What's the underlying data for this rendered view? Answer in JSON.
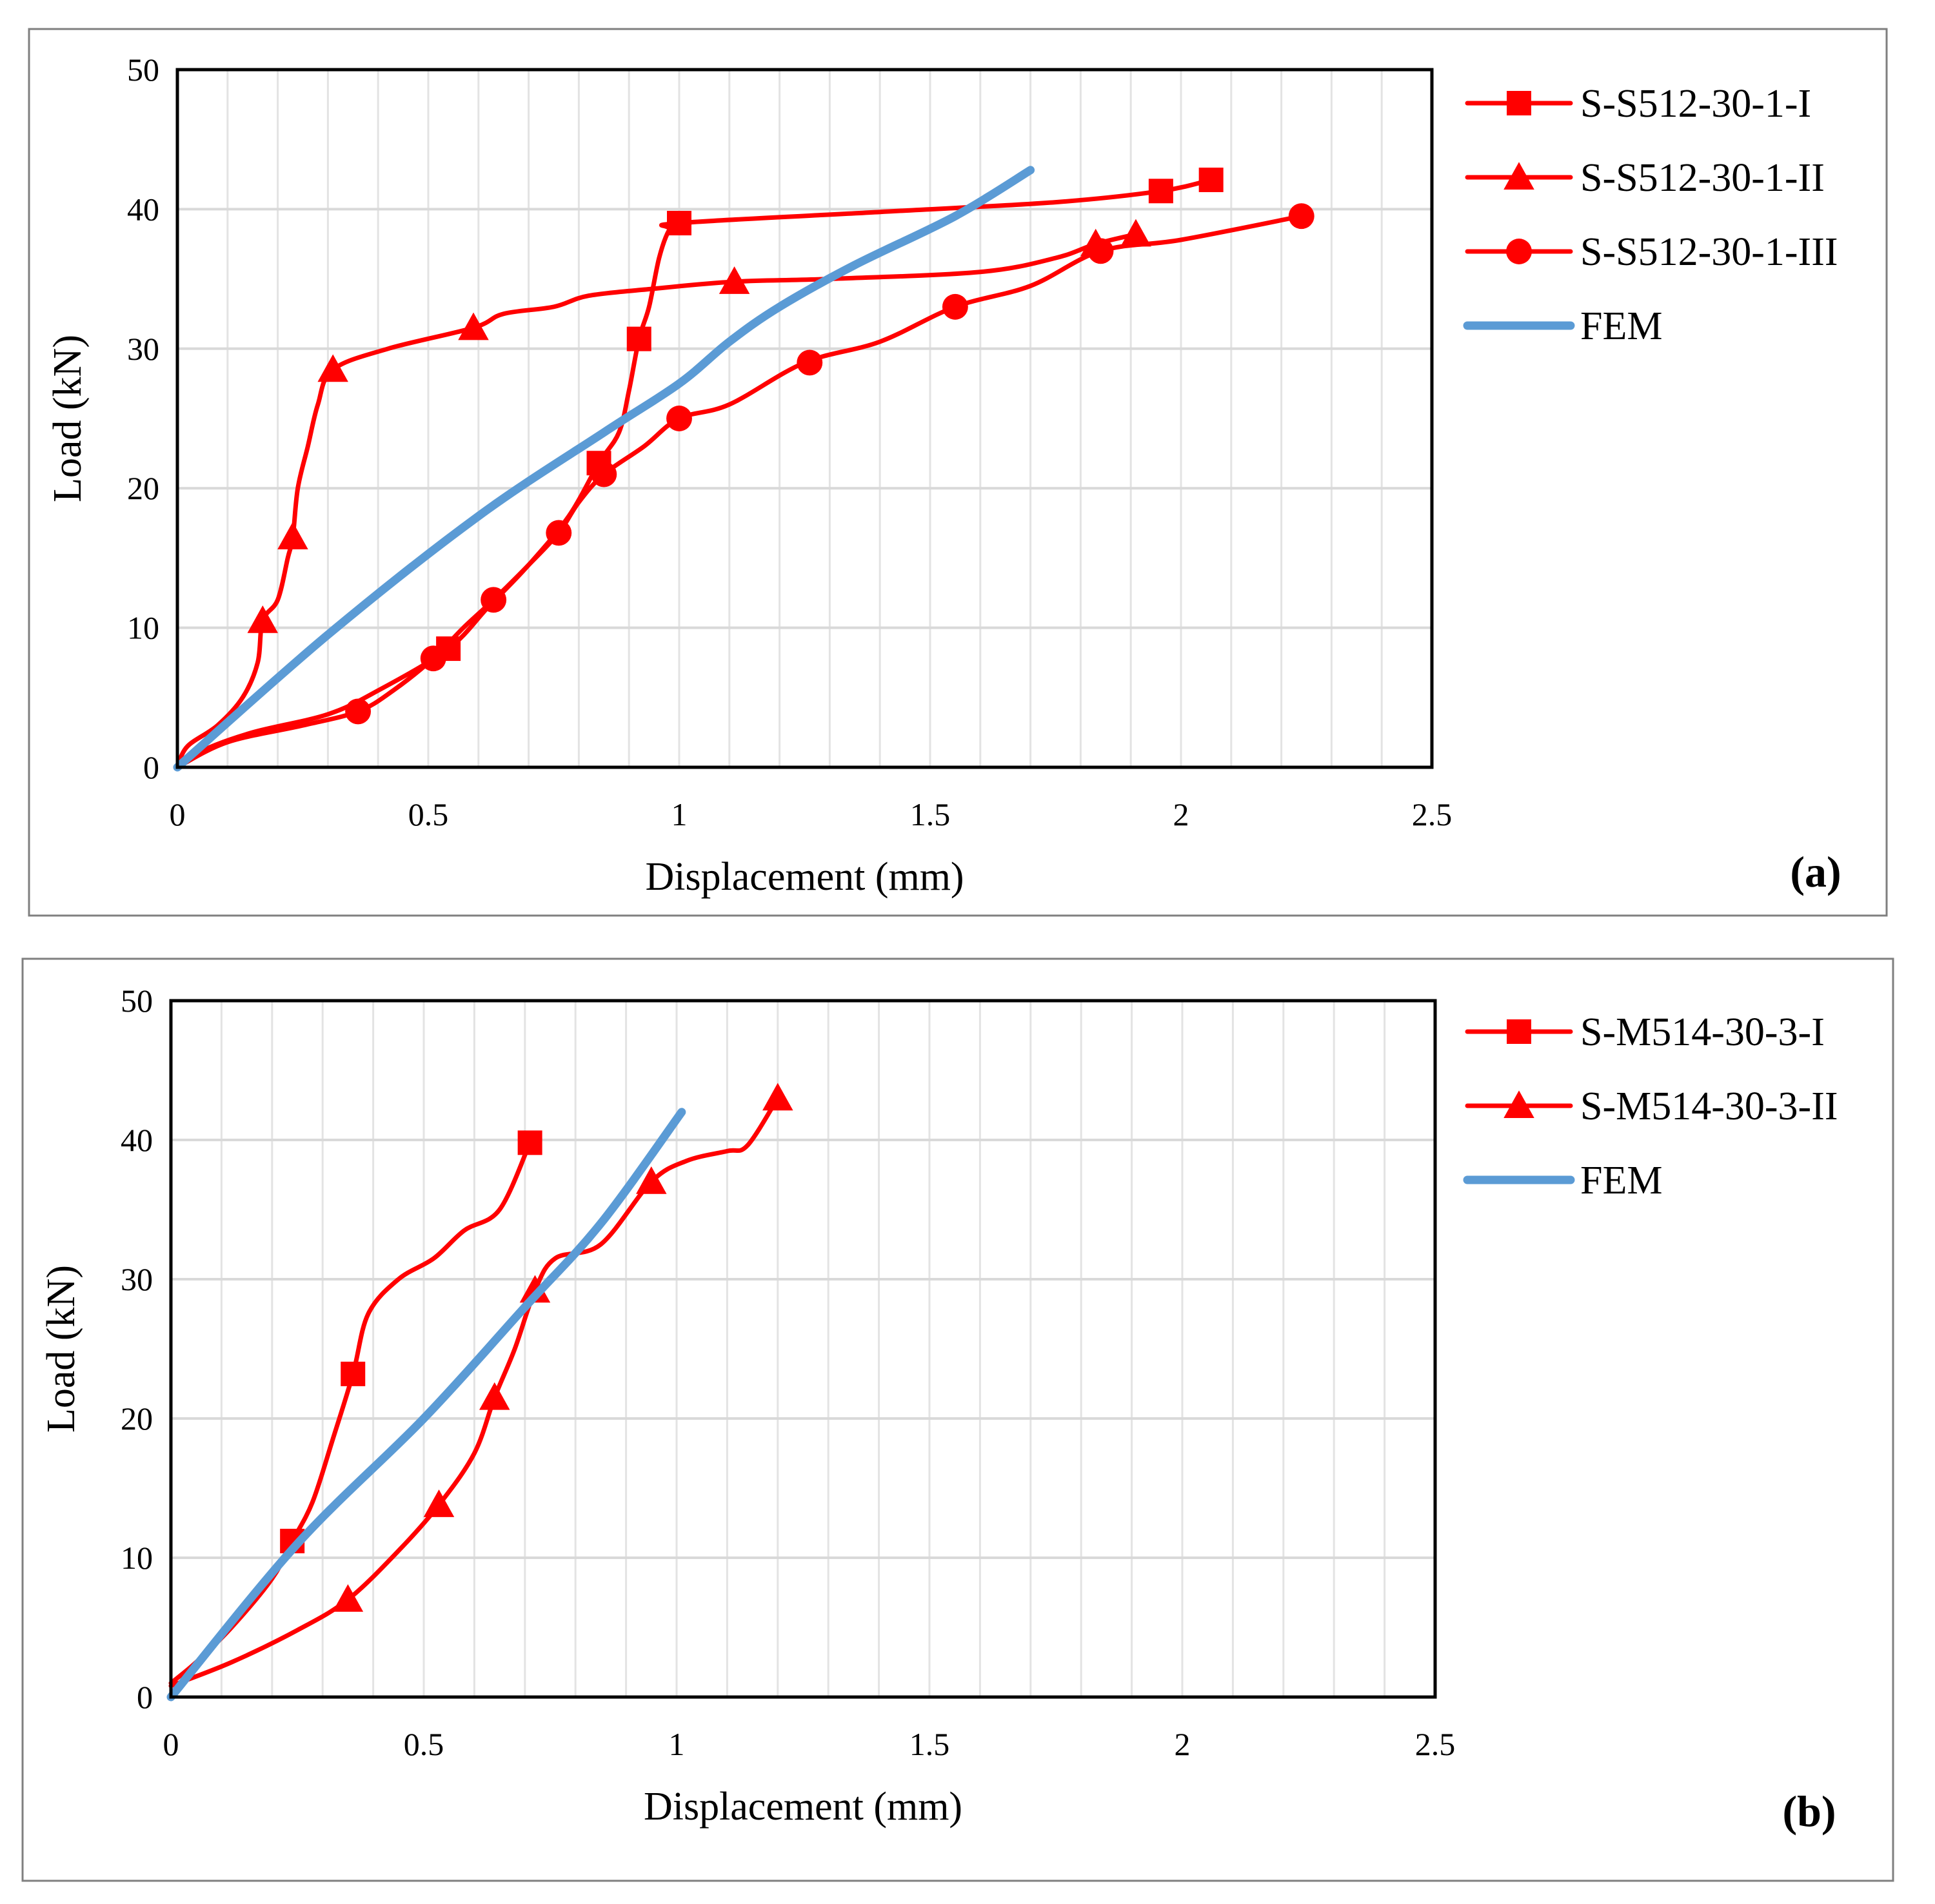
{
  "chart_data": [
    {
      "type": "line",
      "panel_label": "(a)",
      "xlabel": "Displacement (mm)",
      "ylabel": "Load (kN)",
      "xlim": [
        0,
        2.5
      ],
      "ylim": [
        0,
        50
      ],
      "xticks": [
        0,
        0.5,
        1,
        1.5,
        2,
        2.5
      ],
      "xtick_labels": [
        "0",
        "0.5",
        "1",
        "1.5",
        "2",
        "2.5"
      ],
      "yticks": [
        0,
        10,
        20,
        30,
        40,
        50
      ],
      "ytick_labels": [
        "0",
        "10",
        "20",
        "30",
        "40",
        "50"
      ],
      "grid": true,
      "legend_position": "right",
      "series": [
        {
          "name": "S-S512-30-1-I",
          "color": "#ff0000",
          "marker": "square",
          "points": [
            [
              0,
              0
            ],
            [
              0.05,
              1.2
            ],
            [
              0.15,
              2.5
            ],
            [
              0.3,
              3.8
            ],
            [
              0.4,
              5.5
            ],
            [
              0.54,
              8.5
            ],
            [
              0.62,
              11.5
            ],
            [
              0.7,
              14.5
            ],
            [
              0.78,
              18
            ],
            [
              0.84,
              21.8
            ],
            [
              0.88,
              24
            ],
            [
              0.9,
              27
            ],
            [
              0.92,
              30.7
            ],
            [
              0.94,
              33
            ],
            [
              0.96,
              36.5
            ],
            [
              0.98,
              38.5
            ],
            [
              1.0,
              39
            ],
            [
              1.4,
              39.8
            ],
            [
              1.75,
              40.5
            ],
            [
              1.96,
              41.3
            ],
            [
              2.06,
              42.1
            ]
          ],
          "markers": [
            [
              0.54,
              8.5
            ],
            [
              0.84,
              21.8
            ],
            [
              0.92,
              30.7
            ],
            [
              1.0,
              39
            ],
            [
              1.96,
              41.3
            ],
            [
              2.06,
              42.1
            ]
          ]
        },
        {
          "name": "S-S512-30-1-II",
          "color": "#ff0000",
          "marker": "triangle",
          "points": [
            [
              0,
              0
            ],
            [
              0.02,
              1.5
            ],
            [
              0.08,
              3
            ],
            [
              0.13,
              5
            ],
            [
              0.16,
              7.5
            ],
            [
              0.17,
              10.5
            ],
            [
              0.2,
              12
            ],
            [
              0.22,
              15
            ],
            [
              0.23,
              16.5
            ],
            [
              0.24,
              20
            ],
            [
              0.26,
              23
            ],
            [
              0.28,
              26
            ],
            [
              0.31,
              28.5
            ],
            [
              0.42,
              30
            ],
            [
              0.59,
              31.5
            ],
            [
              0.65,
              32.5
            ],
            [
              0.75,
              33
            ],
            [
              0.82,
              33.8
            ],
            [
              0.95,
              34.3
            ],
            [
              1.11,
              34.8
            ],
            [
              1.3,
              35
            ],
            [
              1.6,
              35.5
            ],
            [
              1.75,
              36.5
            ],
            [
              1.83,
              37.5
            ],
            [
              1.91,
              38.2
            ]
          ],
          "markers": [
            [
              0.17,
              10.5
            ],
            [
              0.23,
              16.5
            ],
            [
              0.31,
              28.5
            ],
            [
              0.59,
              31.5
            ],
            [
              1.11,
              34.8
            ],
            [
              1.83,
              37.5
            ],
            [
              1.91,
              38.2
            ]
          ]
        },
        {
          "name": "S-S512-30-1-III",
          "color": "#ff0000",
          "marker": "circle",
          "points": [
            [
              0,
              0
            ],
            [
              0.1,
              1.8
            ],
            [
              0.25,
              3
            ],
            [
              0.36,
              4
            ],
            [
              0.43,
              5.5
            ],
            [
              0.51,
              7.8
            ],
            [
              0.57,
              10
            ],
            [
              0.63,
              12
            ],
            [
              0.7,
              14.5
            ],
            [
              0.76,
              16.8
            ],
            [
              0.8,
              19
            ],
            [
              0.85,
              21
            ],
            [
              0.93,
              23
            ],
            [
              1.0,
              25
            ],
            [
              1.1,
              26
            ],
            [
              1.25,
              29
            ],
            [
              1.4,
              30.5
            ],
            [
              1.55,
              33
            ],
            [
              1.7,
              34.5
            ],
            [
              1.84,
              37
            ],
            [
              2.0,
              37.8
            ],
            [
              2.24,
              39.5
            ]
          ],
          "markers": [
            [
              0.36,
              4
            ],
            [
              0.51,
              7.8
            ],
            [
              0.63,
              12
            ],
            [
              0.76,
              16.8
            ],
            [
              0.85,
              21
            ],
            [
              1.0,
              25
            ],
            [
              1.26,
              29
            ],
            [
              1.55,
              33
            ],
            [
              1.84,
              37
            ],
            [
              2.24,
              39.5
            ]
          ]
        },
        {
          "name": "FEM",
          "color": "#5b9bd5",
          "marker": "none",
          "points": [
            [
              0,
              0
            ],
            [
              0.3,
              9.5
            ],
            [
              0.6,
              18
            ],
            [
              0.85,
              24
            ],
            [
              1.0,
              27.5
            ],
            [
              1.1,
              30.5
            ],
            [
              1.2,
              33
            ],
            [
              1.35,
              36
            ],
            [
              1.55,
              39.5
            ],
            [
              1.7,
              42.8
            ]
          ],
          "markers": []
        }
      ]
    },
    {
      "type": "line",
      "panel_label": "(b)",
      "xlabel": "Displacement (mm)",
      "ylabel": "Load (kN)",
      "xlim": [
        0,
        2.5
      ],
      "ylim": [
        0,
        50
      ],
      "xticks": [
        0,
        0.5,
        1,
        1.5,
        2,
        2.5
      ],
      "xtick_labels": [
        "0",
        "0.5",
        "1",
        "1.5",
        "2",
        "2.5"
      ],
      "yticks": [
        0,
        10,
        20,
        30,
        40,
        50
      ],
      "ytick_labels": [
        "0",
        "10",
        "20",
        "30",
        "40",
        "50"
      ],
      "grid": true,
      "legend_position": "right",
      "series": [
        {
          "name": "S-M514-30-3-I",
          "color": "#ff0000",
          "marker": "square",
          "points": [
            [
              0,
              1
            ],
            [
              0.05,
              2.5
            ],
            [
              0.12,
              5
            ],
            [
              0.2,
              8.5
            ],
            [
              0.24,
              11.2
            ],
            [
              0.28,
              14
            ],
            [
              0.32,
              18.5
            ],
            [
              0.36,
              23.2
            ],
            [
              0.39,
              27.5
            ],
            [
              0.45,
              30
            ],
            [
              0.52,
              31.5
            ],
            [
              0.58,
              33.5
            ],
            [
              0.65,
              35
            ],
            [
              0.71,
              39.8
            ]
          ],
          "markers": [
            [
              0.24,
              11.2
            ],
            [
              0.36,
              23.2
            ],
            [
              0.71,
              39.8
            ]
          ]
        },
        {
          "name": "S-M514-30-3-II",
          "color": "#ff0000",
          "marker": "triangle",
          "points": [
            [
              0,
              0.8
            ],
            [
              0.12,
              2.5
            ],
            [
              0.25,
              4.8
            ],
            [
              0.35,
              7
            ],
            [
              0.45,
              10.5
            ],
            [
              0.53,
              13.8
            ],
            [
              0.6,
              17.5
            ],
            [
              0.64,
              21.5
            ],
            [
              0.68,
              25
            ],
            [
              0.72,
              29.2
            ],
            [
              0.76,
              31.5
            ],
            [
              0.85,
              32.5
            ],
            [
              0.95,
              37
            ],
            [
              1.02,
              38.5
            ],
            [
              1.1,
              39.2
            ],
            [
              1.14,
              39.6
            ],
            [
              1.2,
              43
            ]
          ],
          "markers": [
            [
              0.35,
              7
            ],
            [
              0.53,
              13.8
            ],
            [
              0.64,
              21.5
            ],
            [
              0.72,
              29.2
            ],
            [
              0.95,
              37
            ],
            [
              1.2,
              43
            ]
          ]
        },
        {
          "name": "FEM",
          "color": "#5b9bd5",
          "marker": "none",
          "points": [
            [
              0,
              0
            ],
            [
              0.25,
              11
            ],
            [
              0.5,
              20
            ],
            [
              0.7,
              28
            ],
            [
              0.85,
              34
            ],
            [
              1.01,
              42
            ]
          ],
          "markers": []
        }
      ]
    }
  ]
}
